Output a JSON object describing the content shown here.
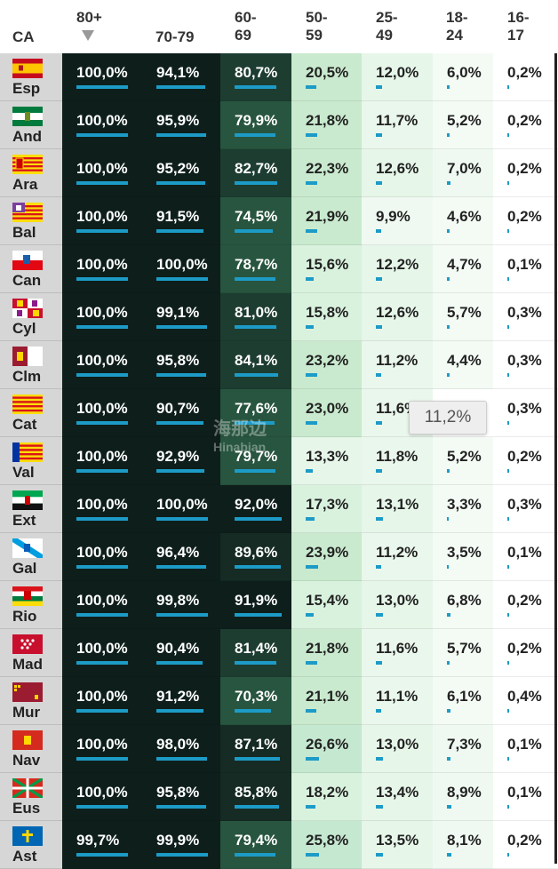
{
  "header": {
    "ca": "CA",
    "cols": [
      "80+",
      "70-79",
      "60-69",
      "50-59",
      "25-49",
      "18-24",
      "16-17"
    ],
    "cols_display": [
      [
        "80+"
      ],
      [
        "70-79"
      ],
      [
        "60-",
        "69"
      ],
      [
        "50-",
        "59"
      ],
      [
        "25-",
        "49"
      ],
      [
        "18-",
        "24"
      ],
      [
        "16-",
        "17"
      ]
    ]
  },
  "rows": [
    {
      "abbr": "Esp",
      "flag": "esp-flag-icon",
      "values": [
        "100,0%",
        "94,1%",
        "80,7%",
        "20,5%",
        "12,0%",
        "6,0%",
        "0,2%"
      ],
      "nums": [
        100.0,
        94.1,
        80.7,
        20.5,
        12.0,
        6.0,
        0.2
      ]
    },
    {
      "abbr": "And",
      "flag": "and-flag-icon",
      "values": [
        "100,0%",
        "95,9%",
        "79,9%",
        "21,8%",
        "11,7%",
        "5,2%",
        "0,2%"
      ],
      "nums": [
        100.0,
        95.9,
        79.9,
        21.8,
        11.7,
        5.2,
        0.2
      ]
    },
    {
      "abbr": "Ara",
      "flag": "ara-flag-icon",
      "values": [
        "100,0%",
        "95,2%",
        "82,7%",
        "22,3%",
        "12,6%",
        "7,0%",
        "0,2%"
      ],
      "nums": [
        100.0,
        95.2,
        82.7,
        22.3,
        12.6,
        7.0,
        0.2
      ]
    },
    {
      "abbr": "Bal",
      "flag": "bal-flag-icon",
      "values": [
        "100,0%",
        "91,5%",
        "74,5%",
        "21,9%",
        "9,9%",
        "4,6%",
        "0,2%"
      ],
      "nums": [
        100.0,
        91.5,
        74.5,
        21.9,
        9.9,
        4.6,
        0.2
      ]
    },
    {
      "abbr": "Can",
      "flag": "can-flag-icon",
      "values": [
        "100,0%",
        "100,0%",
        "78,7%",
        "15,6%",
        "12,2%",
        "4,7%",
        "0,1%"
      ],
      "nums": [
        100.0,
        100.0,
        78.7,
        15.6,
        12.2,
        4.7,
        0.1
      ]
    },
    {
      "abbr": "Cyl",
      "flag": "cyl-flag-icon",
      "values": [
        "100,0%",
        "99,1%",
        "81,0%",
        "15,8%",
        "12,6%",
        "5,7%",
        "0,3%"
      ],
      "nums": [
        100.0,
        99.1,
        81.0,
        15.8,
        12.6,
        5.7,
        0.3
      ]
    },
    {
      "abbr": "Clm",
      "flag": "clm-flag-icon",
      "values": [
        "100,0%",
        "95,8%",
        "84,1%",
        "23,2%",
        "11,2%",
        "4,4%",
        "0,3%"
      ],
      "nums": [
        100.0,
        95.8,
        84.1,
        23.2,
        11.2,
        4.4,
        0.3
      ]
    },
    {
      "abbr": "Cat",
      "flag": "cat-flag-icon",
      "values": [
        "100,0%",
        "90,7%",
        "77,6%",
        "23,0%",
        "11,6%",
        "",
        "0,3%"
      ],
      "nums": [
        100.0,
        90.7,
        77.6,
        23.0,
        11.6,
        0,
        0.3
      ]
    },
    {
      "abbr": "Val",
      "flag": "val-flag-icon",
      "values": [
        "100,0%",
        "92,9%",
        "79,7%",
        "13,3%",
        "11,8%",
        "5,2%",
        "0,2%"
      ],
      "nums": [
        100.0,
        92.9,
        79.7,
        13.3,
        11.8,
        5.2,
        0.2
      ]
    },
    {
      "abbr": "Ext",
      "flag": "ext-flag-icon",
      "values": [
        "100,0%",
        "100,0%",
        "92,0%",
        "17,3%",
        "13,1%",
        "3,3%",
        "0,3%"
      ],
      "nums": [
        100.0,
        100.0,
        92.0,
        17.3,
        13.1,
        3.3,
        0.3
      ]
    },
    {
      "abbr": "Gal",
      "flag": "gal-flag-icon",
      "values": [
        "100,0%",
        "96,4%",
        "89,6%",
        "23,9%",
        "11,2%",
        "3,5%",
        "0,1%"
      ],
      "nums": [
        100.0,
        96.4,
        89.6,
        23.9,
        11.2,
        3.5,
        0.1
      ]
    },
    {
      "abbr": "Rio",
      "flag": "rio-flag-icon",
      "values": [
        "100,0%",
        "99,8%",
        "91,9%",
        "15,4%",
        "13,0%",
        "6,8%",
        "0,2%"
      ],
      "nums": [
        100.0,
        99.8,
        91.9,
        15.4,
        13.0,
        6.8,
        0.2
      ]
    },
    {
      "abbr": "Mad",
      "flag": "mad-flag-icon",
      "values": [
        "100,0%",
        "90,4%",
        "81,4%",
        "21,8%",
        "11,6%",
        "5,7%",
        "0,2%"
      ],
      "nums": [
        100.0,
        90.4,
        81.4,
        21.8,
        11.6,
        5.7,
        0.2
      ]
    },
    {
      "abbr": "Mur",
      "flag": "mur-flag-icon",
      "values": [
        "100,0%",
        "91,2%",
        "70,3%",
        "21,1%",
        "11,1%",
        "6,1%",
        "0,4%"
      ],
      "nums": [
        100.0,
        91.2,
        70.3,
        21.1,
        11.1,
        6.1,
        0.4
      ]
    },
    {
      "abbr": "Nav",
      "flag": "nav-flag-icon",
      "values": [
        "100,0%",
        "98,0%",
        "87,1%",
        "26,6%",
        "13,0%",
        "7,3%",
        "0,1%"
      ],
      "nums": [
        100.0,
        98.0,
        87.1,
        26.6,
        13.0,
        7.3,
        0.1
      ]
    },
    {
      "abbr": "Eus",
      "flag": "eus-flag-icon",
      "values": [
        "100,0%",
        "95,8%",
        "85,8%",
        "18,2%",
        "13,4%",
        "8,9%",
        "0,1%"
      ],
      "nums": [
        100.0,
        95.8,
        85.8,
        18.2,
        13.4,
        8.9,
        0.1
      ]
    },
    {
      "abbr": "Ast",
      "flag": "ast-flag-icon",
      "values": [
        "99,7%",
        "99,9%",
        "79,4%",
        "25,8%",
        "13,5%",
        "8,1%",
        "0,2%"
      ],
      "nums": [
        99.7,
        99.9,
        79.4,
        25.8,
        13.5,
        8.1,
        0.2
      ]
    }
  ],
  "tooltip": "11,2%",
  "watermark": {
    "line1": "海那边",
    "line2": "Hinabian"
  },
  "colors": {
    "bar": "#1d9bc7",
    "flag_bg": "#d6d6d6"
  }
}
